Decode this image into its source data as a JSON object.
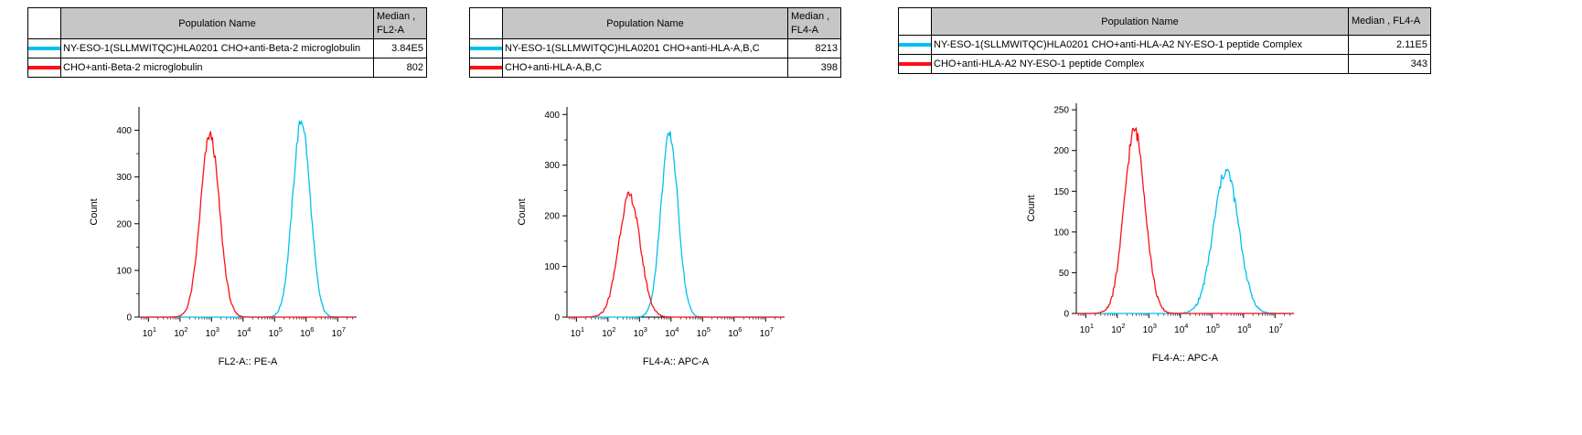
{
  "page": {
    "background": "#ffffff"
  },
  "chart_data": [
    {
      "type": "histogram",
      "title": "",
      "xlabel": "FL2-A:: PE-A",
      "ylabel": "Count",
      "x_scale": "log10",
      "x_tick_exponents": [
        1,
        2,
        3,
        4,
        5,
        6,
        7
      ],
      "x_range_log10": [
        0.7,
        7.6
      ],
      "y_ticks": [
        0,
        100,
        200,
        300,
        400
      ],
      "y_max": 450,
      "grid": false,
      "legend_position": "table-top",
      "table": {
        "population_header": "Population Name",
        "median_header": "Median ,\nFL2-A"
      },
      "series": [
        {
          "name": "NY-ESO-1(SLLMWITQC)HLA0201 CHO+anti-Beta-2 microglobulin",
          "color": "#00c0f0",
          "median": "3.84E5",
          "peak_x_log10": 5.85,
          "peak_count": 420,
          "sigma_log10": 0.28
        },
        {
          "name": "CHO+anti-Beta-2 microglobulin",
          "color": "#fa0f16",
          "median": "802",
          "peak_x_log10": 2.95,
          "peak_count": 390,
          "sigma_log10": 0.3
        }
      ]
    },
    {
      "type": "histogram",
      "title": "",
      "xlabel": "FL4-A:: APC-A",
      "ylabel": "Count",
      "x_scale": "log10",
      "x_tick_exponents": [
        1,
        2,
        3,
        4,
        5,
        6,
        7
      ],
      "x_range_log10": [
        0.7,
        7.6
      ],
      "y_ticks": [
        0,
        100,
        200,
        300,
        400
      ],
      "y_max": 415,
      "grid": false,
      "legend_position": "table-top",
      "table": {
        "population_header": "Population Name",
        "median_header": "Median ,\nFL4-A"
      },
      "series": [
        {
          "name": "NY-ESO-1(SLLMWITQC)HLA0201 CHO+anti-HLA-A,B,C",
          "color": "#00c0f0",
          "median": "8213",
          "peak_x_log10": 3.95,
          "peak_count": 360,
          "sigma_log10": 0.27
        },
        {
          "name": "CHO+anti-HLA-A,B,C",
          "color": "#fa0f16",
          "median": "398",
          "peak_x_log10": 2.68,
          "peak_count": 240,
          "sigma_log10": 0.34
        }
      ]
    },
    {
      "type": "histogram",
      "title": "",
      "xlabel": "FL4-A:: APC-A",
      "ylabel": "Count",
      "x_scale": "log10",
      "x_tick_exponents": [
        1,
        2,
        3,
        4,
        5,
        6,
        7
      ],
      "x_range_log10": [
        0.7,
        7.6
      ],
      "y_ticks": [
        0,
        50,
        100,
        150,
        200,
        250
      ],
      "y_max": 258,
      "grid": false,
      "legend_position": "table-top",
      "table": {
        "population_header": "Population Name",
        "median_header": "Median , FL4-A"
      },
      "series": [
        {
          "name": "NY-ESO-1(SLLMWITQC)HLA0201 CHO+anti-HLA-A2 NY-ESO-1 peptide Complex",
          "color": "#00c0f0",
          "median": "2.11E5",
          "peak_x_log10": 5.45,
          "peak_count": 175,
          "sigma_log10": 0.4
        },
        {
          "name": "CHO+anti-HLA-A2 NY-ESO-1 peptide Complex",
          "color": "#fa0f16",
          "median": "343",
          "peak_x_log10": 2.55,
          "peak_count": 225,
          "sigma_log10": 0.33
        }
      ]
    }
  ]
}
